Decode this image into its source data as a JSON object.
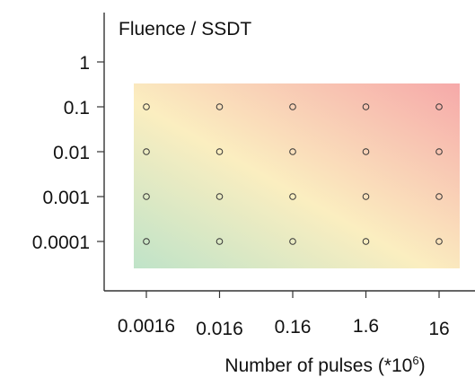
{
  "chart_data": {
    "type": "scatter",
    "title": "Fluence / SSDT",
    "xlabel": "Number of pulses (*10",
    "xlabel_superscript": "6",
    "xlabel_close": ")",
    "ylabel": "",
    "x_categories": [
      "0.0016",
      "0.016",
      "0.16",
      "1.6",
      "16"
    ],
    "y_ticks": [
      "1",
      "0.1",
      "0.01",
      "0.001",
      "0.0001"
    ],
    "point_y_categories": [
      "0.1",
      "0.01",
      "0.001",
      "0.0001"
    ],
    "marker": "open-circle",
    "background_gradient": {
      "bottom_left": "#bfe3c8",
      "middle": "#fbeec0",
      "top_right": "#f6a9a9"
    },
    "colors": {
      "axis": "#333333",
      "marker_stroke": "#333333"
    },
    "grid": false,
    "legend": "none"
  }
}
